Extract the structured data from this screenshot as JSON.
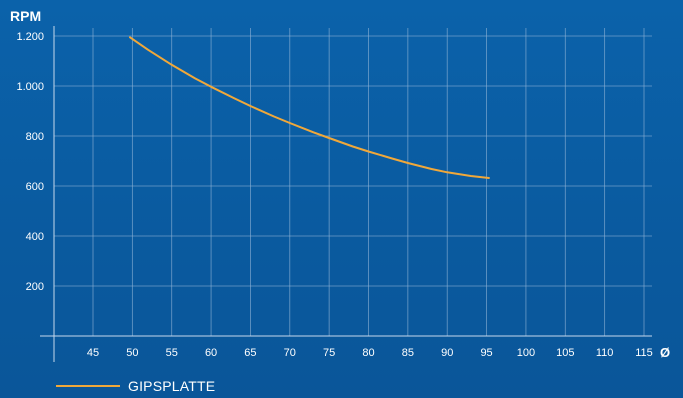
{
  "chart_data": {
    "type": "line",
    "ylabel": "RPM",
    "xlabel": "Ø",
    "yticks": [
      200,
      400,
      600,
      800,
      1000,
      1200
    ],
    "ytick_labels": [
      "200",
      "400",
      "600",
      "800",
      "1.000",
      "1.200"
    ],
    "xticks": [
      45,
      50,
      55,
      60,
      65,
      70,
      75,
      80,
      85,
      90,
      95,
      100,
      105,
      110,
      115
    ],
    "xtick_labels": [
      "45",
      "50",
      "55",
      "60",
      "65",
      "70",
      "75",
      "80",
      "85",
      "90",
      "95",
      "100",
      "105",
      "110",
      "115"
    ],
    "xlim": [
      40,
      120
    ],
    "ylim": [
      0,
      1200
    ],
    "grid": true,
    "legend_position": "bottom-left",
    "series": [
      {
        "name": "GIPSPLATTE",
        "color": "#f0a83a",
        "x": [
          49.7,
          52,
          55,
          58,
          60,
          63,
          65,
          68,
          70,
          73,
          75,
          78,
          80,
          83,
          85,
          88,
          90,
          93,
          95.3
        ],
        "y": [
          1195,
          1145,
          1085,
          1030,
          997,
          950,
          920,
          878,
          852,
          815,
          792,
          758,
          738,
          710,
          692,
          668,
          655,
          640,
          632
        ]
      }
    ]
  },
  "colors": {
    "background": "#0a5ea4",
    "grid": "#8fb3d6",
    "axis": "#c7d9ec",
    "text": "#ffffff",
    "line": "#f0a83a"
  }
}
